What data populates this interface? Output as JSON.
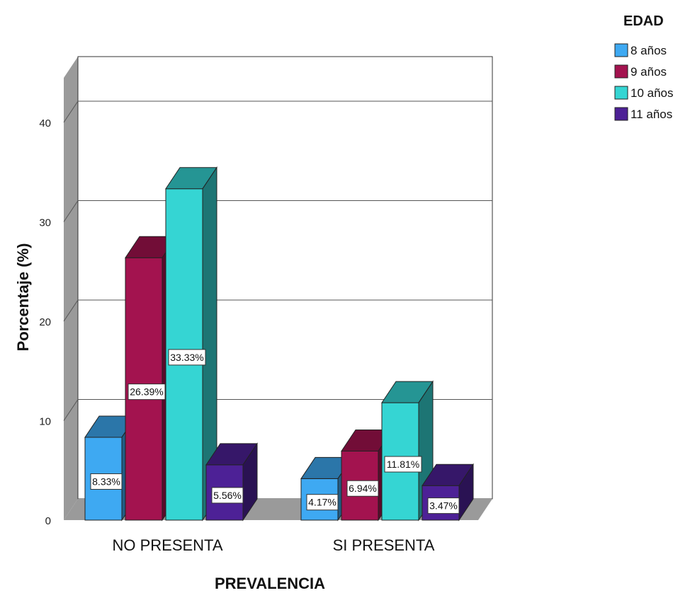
{
  "chart_data": {
    "type": "bar",
    "categories": [
      "NO PRESENTA",
      "SI PRESENTA"
    ],
    "series": [
      {
        "name": "8 años",
        "values": [
          8.33,
          4.17
        ],
        "labels": [
          "8.33%",
          "4.17%"
        ],
        "color": "#3ea9f2"
      },
      {
        "name": "9 años",
        "values": [
          26.39,
          6.94
        ],
        "labels": [
          "26.39%",
          "6.94%"
        ],
        "color": "#a3134f"
      },
      {
        "name": "10 años",
        "values": [
          33.33,
          11.81
        ],
        "labels": [
          "33.33%",
          "11.81%"
        ],
        "color": "#35d5d3"
      },
      {
        "name": "11 años",
        "values": [
          5.56,
          3.47
        ],
        "labels": [
          "5.56%",
          "3.47%"
        ],
        "color": "#4d2196"
      }
    ],
    "xlabel": "PREVALENCIA",
    "ylabel": "Porcentaje (%)",
    "ylim": [
      0,
      45
    ],
    "yticks": [
      "0",
      "10",
      "20",
      "30",
      "40"
    ],
    "grid": true,
    "legend": {
      "title": "EDAD",
      "position": "top-right"
    }
  }
}
